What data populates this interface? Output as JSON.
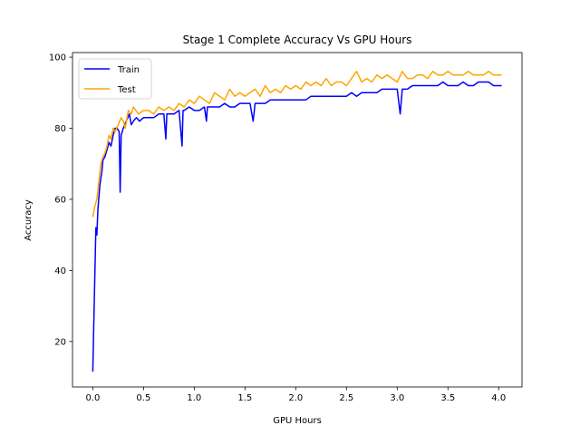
{
  "chart_data": {
    "type": "line",
    "title": "Stage 1 Complete Accuracy Vs GPU Hours",
    "xlabel": "GPU Hours",
    "ylabel": "Accuracy",
    "xlim": [
      -0.2,
      4.23
    ],
    "ylim": [
      7.2,
      101.3
    ],
    "xticks": [
      "0.0",
      "0.5",
      "1.0",
      "1.5",
      "2.0",
      "2.5",
      "3.0",
      "3.5",
      "4.0"
    ],
    "xtick_values": [
      0.0,
      0.5,
      1.0,
      1.5,
      2.0,
      2.5,
      3.0,
      3.5,
      4.0
    ],
    "yticks": [
      "20",
      "40",
      "60",
      "80",
      "100"
    ],
    "ytick_values": [
      20,
      40,
      60,
      80,
      100
    ],
    "grid": false,
    "legend_position": "top-left",
    "series": [
      {
        "name": "Train",
        "color": "#0000ff",
        "x": [
          0.0,
          0.01,
          0.02,
          0.03,
          0.04,
          0.05,
          0.07,
          0.09,
          0.1,
          0.12,
          0.14,
          0.16,
          0.18,
          0.2,
          0.22,
          0.24,
          0.26,
          0.27,
          0.28,
          0.3,
          0.33,
          0.36,
          0.38,
          0.4,
          0.43,
          0.46,
          0.5,
          0.55,
          0.6,
          0.65,
          0.7,
          0.72,
          0.73,
          0.75,
          0.8,
          0.85,
          0.88,
          0.89,
          0.9,
          0.95,
          1.0,
          1.05,
          1.1,
          1.12,
          1.13,
          1.15,
          1.2,
          1.25,
          1.3,
          1.35,
          1.4,
          1.45,
          1.5,
          1.55,
          1.58,
          1.6,
          1.65,
          1.7,
          1.75,
          1.8,
          1.85,
          1.9,
          1.95,
          2.0,
          2.05,
          2.1,
          2.15,
          2.2,
          2.25,
          2.3,
          2.35,
          2.4,
          2.45,
          2.5,
          2.55,
          2.6,
          2.65,
          2.7,
          2.75,
          2.8,
          2.85,
          2.9,
          2.95,
          3.0,
          3.03,
          3.05,
          3.1,
          3.15,
          3.2,
          3.25,
          3.3,
          3.35,
          3.4,
          3.45,
          3.5,
          3.55,
          3.6,
          3.65,
          3.7,
          3.75,
          3.8,
          3.85,
          3.9,
          3.95,
          4.0,
          4.03
        ],
        "values": [
          11.5,
          25,
          38,
          52,
          50,
          57,
          64,
          68,
          71,
          72,
          74,
          76,
          75,
          78,
          80,
          80,
          79,
          62,
          78,
          80,
          82,
          84,
          81,
          82,
          83,
          82,
          83,
          83,
          83,
          84,
          84,
          77,
          84,
          84,
          84,
          85,
          75,
          85,
          85,
          86,
          85,
          85,
          86,
          82,
          86,
          86,
          86,
          86,
          87,
          86,
          86,
          87,
          87,
          87,
          82,
          87,
          87,
          87,
          88,
          88,
          88,
          88,
          88,
          88,
          88,
          88,
          89,
          89,
          89,
          89,
          89,
          89,
          89,
          89,
          90,
          89,
          90,
          90,
          90,
          90,
          91,
          91,
          91,
          91,
          84,
          91,
          91,
          92,
          92,
          92,
          92,
          92,
          92,
          93,
          92,
          92,
          92,
          93,
          92,
          92,
          93,
          93,
          93,
          92,
          92,
          92
        ]
      },
      {
        "name": "Test",
        "color": "#ffa500",
        "x": [
          0.0,
          0.02,
          0.04,
          0.06,
          0.08,
          0.1,
          0.12,
          0.14,
          0.16,
          0.18,
          0.2,
          0.22,
          0.25,
          0.28,
          0.3,
          0.32,
          0.35,
          0.38,
          0.4,
          0.45,
          0.5,
          0.55,
          0.6,
          0.65,
          0.7,
          0.75,
          0.8,
          0.85,
          0.9,
          0.95,
          1.0,
          1.05,
          1.1,
          1.15,
          1.2,
          1.25,
          1.3,
          1.35,
          1.4,
          1.45,
          1.5,
          1.55,
          1.6,
          1.65,
          1.7,
          1.75,
          1.8,
          1.85,
          1.9,
          1.95,
          2.0,
          2.05,
          2.1,
          2.15,
          2.2,
          2.25,
          2.3,
          2.35,
          2.4,
          2.45,
          2.5,
          2.55,
          2.6,
          2.65,
          2.7,
          2.75,
          2.8,
          2.85,
          2.9,
          2.95,
          3.0,
          3.05,
          3.1,
          3.15,
          3.2,
          3.25,
          3.3,
          3.35,
          3.4,
          3.45,
          3.5,
          3.55,
          3.6,
          3.65,
          3.7,
          3.75,
          3.8,
          3.85,
          3.9,
          3.95,
          4.0,
          4.03
        ],
        "values": [
          55,
          58,
          60,
          65,
          70,
          72,
          73,
          75,
          78,
          77,
          80,
          79,
          81,
          83,
          82,
          80,
          85,
          84,
          86,
          84,
          85,
          85,
          84,
          86,
          85,
          86,
          85,
          87,
          86,
          88,
          87,
          89,
          88,
          87,
          90,
          89,
          88,
          91,
          89,
          90,
          89,
          90,
          91,
          89,
          92,
          90,
          91,
          90,
          92,
          91,
          92,
          91,
          93,
          92,
          93,
          92,
          94,
          92,
          93,
          93,
          92,
          94,
          96,
          93,
          94,
          93,
          95,
          94,
          95,
          94,
          93,
          96,
          94,
          94,
          95,
          95,
          94,
          96,
          95,
          95,
          96,
          95,
          95,
          95,
          96,
          95,
          95,
          95,
          96,
          95,
          95,
          95
        ]
      }
    ]
  }
}
